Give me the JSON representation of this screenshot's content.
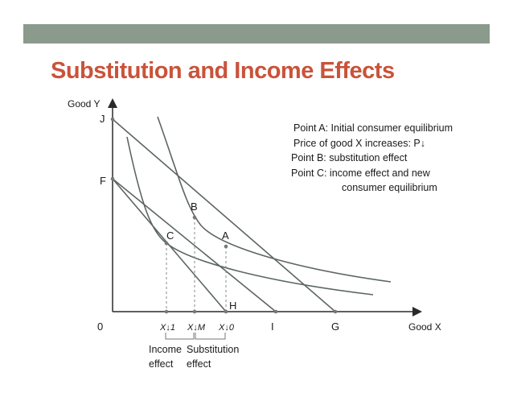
{
  "title": "Substitution and Income Effects",
  "axes": {
    "y_label": "Good Y",
    "x_label": "Good X",
    "origin": "0"
  },
  "points": {
    "J": "J",
    "F": "F",
    "A": "A",
    "B": "B",
    "C": "C",
    "H": "H",
    "I": "I",
    "G": "G"
  },
  "x_ticks": {
    "x1": "X↓1",
    "xm": "X↓M",
    "x0": "X↓0"
  },
  "effects": {
    "income": [
      "Income",
      "effect"
    ],
    "substitution": [
      "Substitution",
      "effect"
    ]
  },
  "legend": {
    "line_a": "Point A: Initial consumer equilibrium",
    "line_price": "Price of good X increases: P↓",
    "line_b": "Point B: substitution effect",
    "line_c": "Point C: income effect and new",
    "line_c2": "consumer equilibrium"
  },
  "colors": {
    "title": "#c9533a",
    "top_bar": "#8a9a8c",
    "curves": "#5c6660",
    "axes": "#2a2a2a"
  }
}
